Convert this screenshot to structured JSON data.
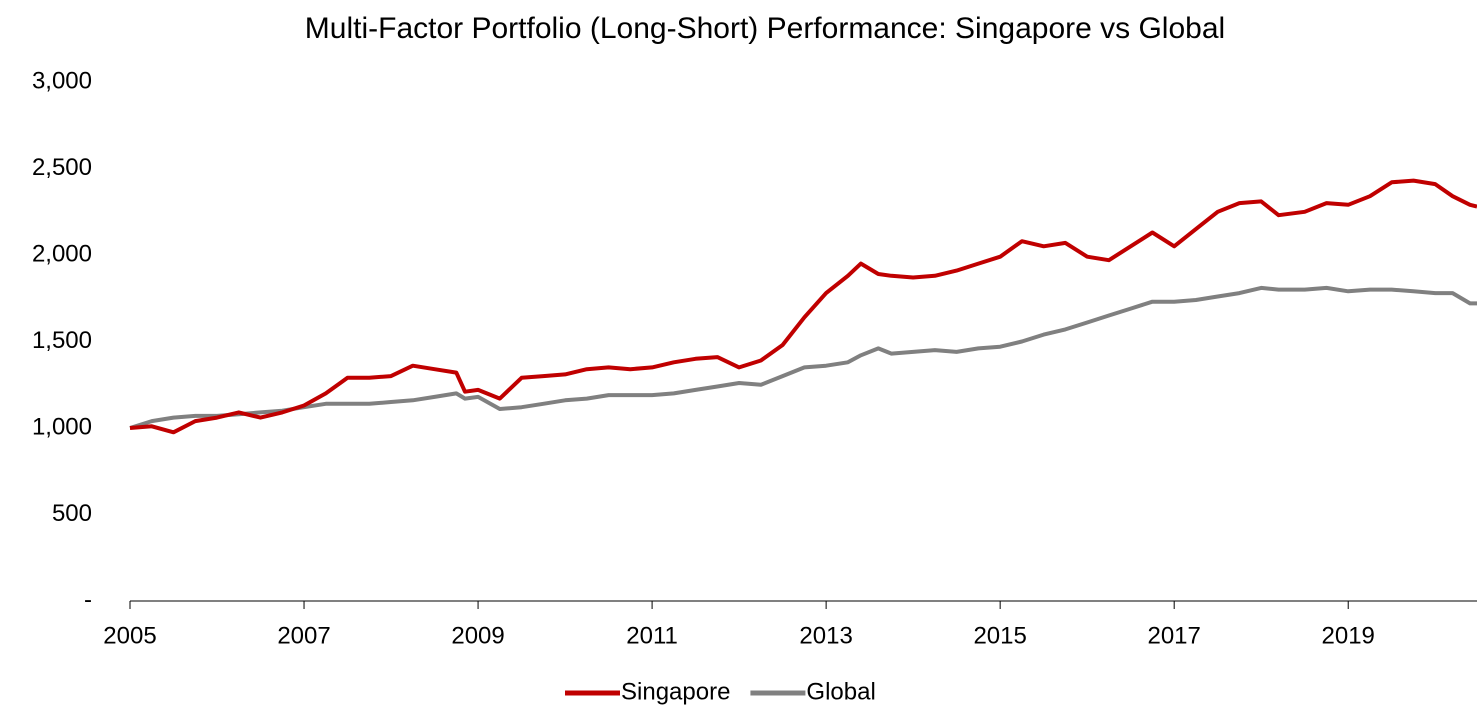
{
  "chart_data": {
    "type": "line",
    "title": "Multi-Factor Portfolio (Long-Short) Performance: Singapore vs Global",
    "x": [
      2005,
      2005.25,
      2005.5,
      2005.75,
      2006,
      2006.25,
      2006.5,
      2006.75,
      2007,
      2007.25,
      2007.5,
      2007.75,
      2008,
      2008.25,
      2008.5,
      2008.75,
      2008.85,
      2009,
      2009.25,
      2009.5,
      2009.75,
      2010,
      2010.25,
      2010.5,
      2010.75,
      2011,
      2011.25,
      2011.5,
      2011.75,
      2012,
      2012.25,
      2012.5,
      2012.75,
      2013,
      2013.25,
      2013.4,
      2013.6,
      2013.75,
      2014,
      2014.25,
      2014.5,
      2014.75,
      2015,
      2015.25,
      2015.5,
      2015.75,
      2016,
      2016.25,
      2016.5,
      2016.75,
      2017,
      2017.25,
      2017.5,
      2017.75,
      2018,
      2018.2,
      2018.5,
      2018.75,
      2019,
      2019.25,
      2019.5,
      2019.75,
      2020,
      2020.2,
      2020.4,
      2020.48
    ],
    "series": [
      {
        "name": "Singapore",
        "color": "#c00000",
        "values": [
          1000,
          1010,
          975,
          1040,
          1060,
          1090,
          1060,
          1090,
          1130,
          1200,
          1290,
          1290,
          1300,
          1360,
          1340,
          1320,
          1210,
          1220,
          1170,
          1290,
          1300,
          1310,
          1340,
          1350,
          1340,
          1350,
          1380,
          1400,
          1410,
          1350,
          1390,
          1480,
          1640,
          1780,
          1880,
          1950,
          1890,
          1880,
          1870,
          1880,
          1910,
          1950,
          1990,
          2080,
          2050,
          2070,
          1990,
          1970,
          2050,
          2130,
          2050,
          2150,
          2250,
          2300,
          2310,
          2230,
          2250,
          2300,
          2290,
          2340,
          2420,
          2430,
          2410,
          2340,
          2290,
          2280
        ]
      },
      {
        "name": "Global",
        "color": "#808080",
        "values": [
          1000,
          1040,
          1060,
          1070,
          1070,
          1080,
          1090,
          1100,
          1120,
          1140,
          1140,
          1140,
          1150,
          1160,
          1180,
          1200,
          1170,
          1180,
          1110,
          1120,
          1140,
          1160,
          1170,
          1190,
          1190,
          1190,
          1200,
          1220,
          1240,
          1260,
          1250,
          1300,
          1350,
          1360,
          1380,
          1420,
          1460,
          1430,
          1440,
          1450,
          1440,
          1460,
          1470,
          1500,
          1540,
          1570,
          1610,
          1650,
          1690,
          1730,
          1730,
          1740,
          1760,
          1780,
          1810,
          1800,
          1800,
          1810,
          1790,
          1800,
          1800,
          1790,
          1780,
          1780,
          1720,
          1720
        ]
      }
    ],
    "xlim": [
      2005,
      2020.48
    ],
    "xticks": [
      2005,
      2007,
      2009,
      2011,
      2013,
      2015,
      2017,
      2019
    ],
    "ylim": [
      0,
      3000
    ],
    "yticks": [
      {
        "value": 0,
        "label": "-"
      },
      500,
      {
        "value": 1000,
        "label": "1,000"
      },
      {
        "value": 1500,
        "label": "1,500"
      },
      {
        "value": 2000,
        "label": "2,000"
      },
      {
        "value": 2500,
        "label": "2,500"
      },
      {
        "value": 3000,
        "label": "3,000"
      }
    ],
    "grid": false,
    "legend": "bottom"
  }
}
